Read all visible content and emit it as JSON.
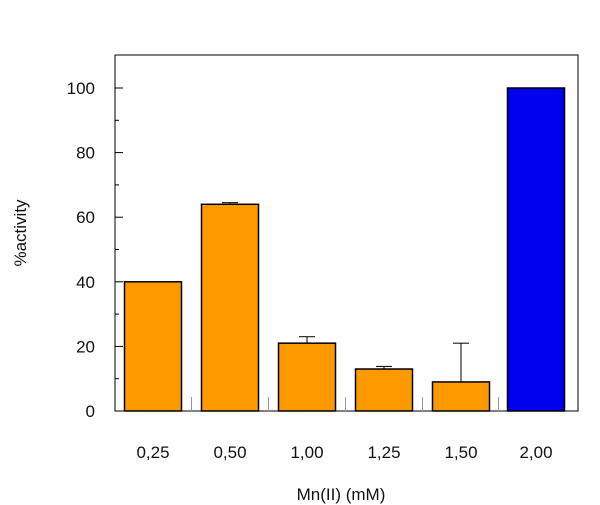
{
  "colors": {
    "default_bar": "#FF9900",
    "highlight_bar": "#0000EE",
    "bar_stroke": "#000000",
    "axis": "#000000"
  },
  "chart_data": {
    "type": "bar",
    "title": "",
    "xlabel": "Mn(II) (mM)",
    "ylabel": "%activity",
    "ylim": [
      0,
      100
    ],
    "yticks": [
      0,
      20,
      40,
      60,
      80,
      100
    ],
    "grid": false,
    "categories": [
      "0,25",
      "0,50",
      "1,00",
      "1,25",
      "1,50",
      "2,00"
    ],
    "values": [
      40,
      64,
      21,
      13,
      9,
      100
    ],
    "error_upper": [
      0,
      0.5,
      2,
      0.8,
      12,
      0
    ],
    "bar_colors": [
      "#FF9900",
      "#FF9900",
      "#FF9900",
      "#FF9900",
      "#FF9900",
      "#0000EE"
    ]
  }
}
